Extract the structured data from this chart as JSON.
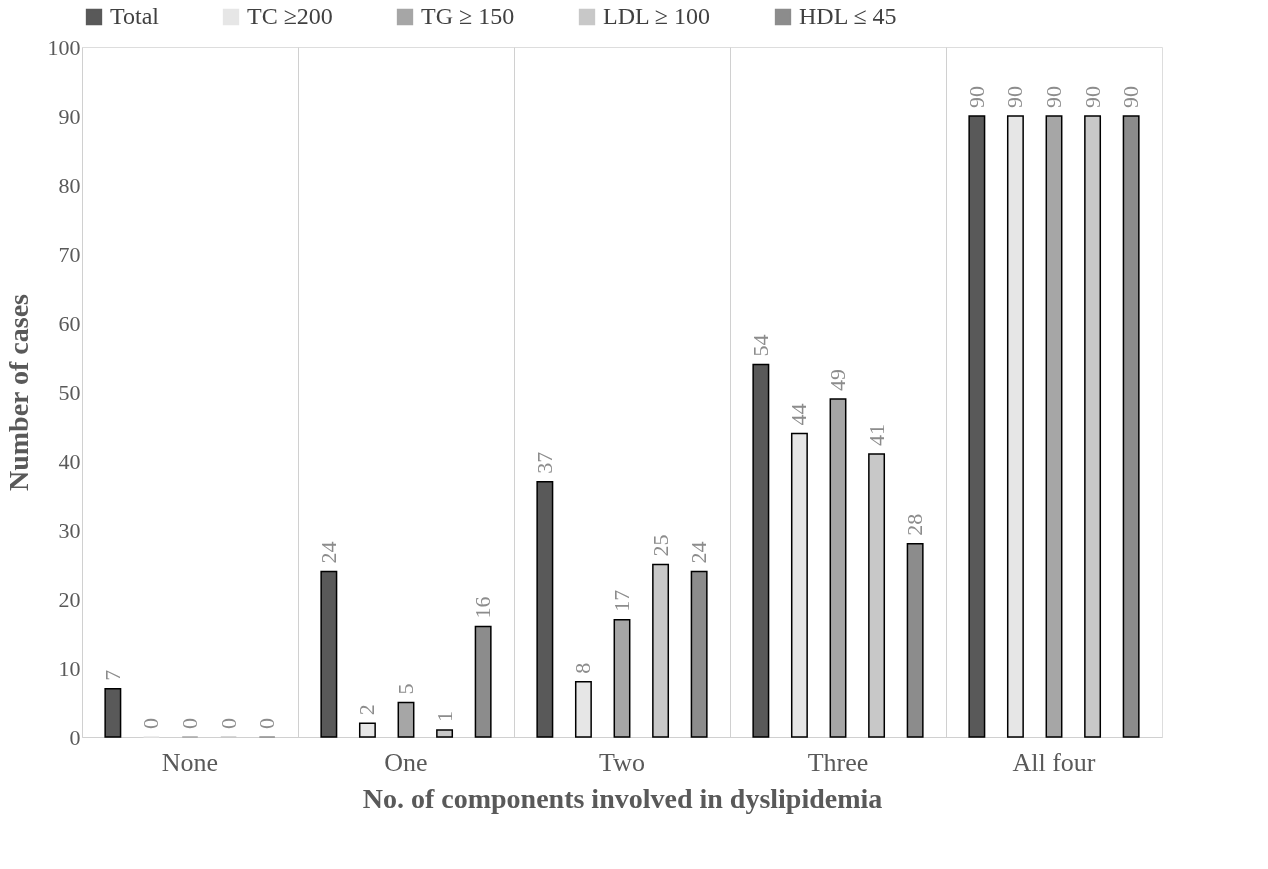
{
  "chart_data": {
    "type": "bar",
    "xlabel": "No. of components involved in dyslipidemia",
    "ylabel": "Number of cases",
    "categories": [
      "None",
      "One",
      "Two",
      "Three",
      "All four"
    ],
    "series": [
      {
        "name": "Total",
        "color": "#595959",
        "values": [
          7,
          24,
          37,
          54,
          90
        ]
      },
      {
        "name": "TC ≥200",
        "color": "#e6e6e6",
        "values": [
          0,
          2,
          8,
          44,
          90
        ]
      },
      {
        "name": "TG ≥ 150",
        "color": "#a6a6a6",
        "values": [
          0,
          5,
          17,
          49,
          90
        ]
      },
      {
        "name": "LDL ≥ 100",
        "color": "#c8c8c8",
        "values": [
          0,
          1,
          25,
          41,
          90
        ]
      },
      {
        "name": "HDL ≤ 45",
        "color": "#8c8c8c",
        "values": [
          0,
          16,
          24,
          28,
          90
        ]
      }
    ],
    "ylim": [
      0,
      100
    ],
    "yticks": [
      0,
      10,
      20,
      30,
      40,
      50,
      60,
      70,
      80,
      90,
      100
    ],
    "grid": "x",
    "legend": "top",
    "data_labels": true
  }
}
